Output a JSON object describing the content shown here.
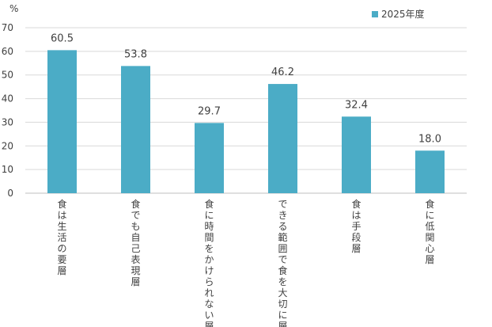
{
  "chart_data": {
    "type": "bar",
    "unit_label": "%",
    "categories": [
      "食は生活の要層",
      "食でも自己表現層",
      "食に時間をかけられない層",
      "できる範囲で食を大切に層",
      "食は手段層",
      "食に低関心層"
    ],
    "series": [
      {
        "name": "2025年度",
        "values": [
          60.5,
          53.8,
          29.7,
          46.2,
          32.4,
          18.0
        ],
        "color": "#4bacc6"
      }
    ],
    "data_labels": [
      "60.5",
      "53.8",
      "29.7",
      "46.2",
      "32.4",
      "18.0"
    ],
    "y_ticks": [
      "0",
      "10",
      "20",
      "30",
      "40",
      "50",
      "60",
      "70"
    ],
    "ylim": [
      0,
      70
    ],
    "grid": true,
    "legend_position": "top-right",
    "colors": {
      "grid": "#d9d9d9",
      "axis": "#bfbfbf",
      "bar": "#4bacc6"
    }
  }
}
